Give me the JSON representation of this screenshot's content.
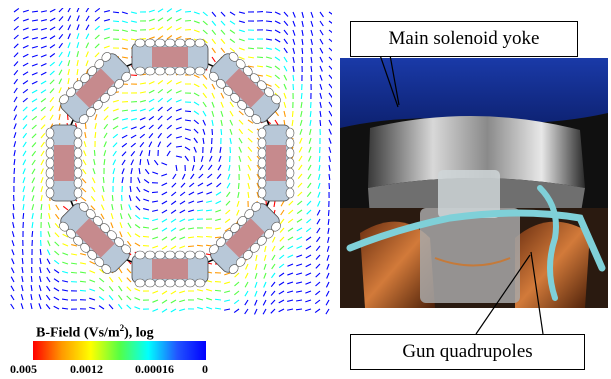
{
  "field_plot": {
    "colorbar": {
      "title": "B-Field (Vs/m",
      "title_sup": "2",
      "title_suffix": "), log",
      "ticks": [
        "0.005",
        "0.0012",
        "0.00016",
        "0"
      ],
      "colors": [
        "#ff0000",
        "#ff9900",
        "#ffff00",
        "#55ff44",
        "#00ffff",
        "#2255ff",
        "#0000ff"
      ]
    },
    "vector_colors": [
      "#0000ff",
      "#00ffff",
      "#55ff44",
      "#ffff00",
      "#ff9900",
      "#ff0000"
    ]
  },
  "labels": {
    "main_solenoid_yoke": "Main solenoid yoke",
    "gun_quadrupoles": "Gun quadrupoles"
  }
}
